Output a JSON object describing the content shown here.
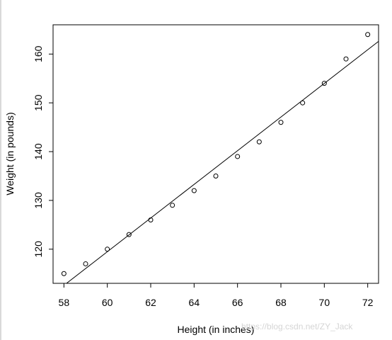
{
  "chart_data": {
    "type": "scatter",
    "xlabel": "Height (in inches)",
    "ylabel": "Weight (in pounds)",
    "xlim": [
      57.5,
      72.5
    ],
    "ylim": [
      113,
      166
    ],
    "xticks": [
      58,
      60,
      62,
      64,
      66,
      68,
      70,
      72
    ],
    "yticks": [
      120,
      130,
      140,
      150,
      160
    ],
    "points": [
      {
        "x": 58,
        "y": 115
      },
      {
        "x": 59,
        "y": 117
      },
      {
        "x": 60,
        "y": 120
      },
      {
        "x": 61,
        "y": 123
      },
      {
        "x": 62,
        "y": 126
      },
      {
        "x": 63,
        "y": 129
      },
      {
        "x": 64,
        "y": 132
      },
      {
        "x": 65,
        "y": 135
      },
      {
        "x": 66,
        "y": 139
      },
      {
        "x": 67,
        "y": 142
      },
      {
        "x": 68,
        "y": 146
      },
      {
        "x": 69,
        "y": 150
      },
      {
        "x": 70,
        "y": 154
      },
      {
        "x": 71,
        "y": 159
      },
      {
        "x": 72,
        "y": 164
      }
    ],
    "regression_line": {
      "intercept": -87.51667,
      "slope": 3.45
    },
    "grid": false,
    "legend": "none"
  },
  "watermark": "https://blog.csdn.net/ZY_Jack"
}
